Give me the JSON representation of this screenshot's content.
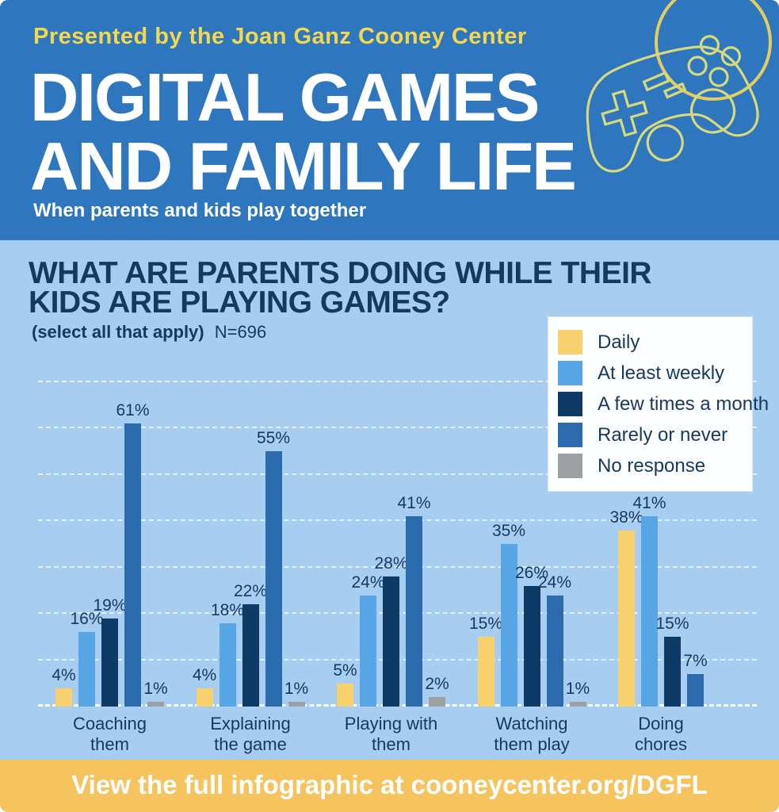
{
  "header": {
    "presented_by": "Presented by the Joan Ganz Cooney Center",
    "title_line1": "DIGITAL GAMES",
    "title_line2": "AND FAMILY LIFE",
    "subtitle": "When parents and kids play together",
    "icon": "game-controller-icon",
    "colors": {
      "background": "#2e77bf",
      "presented_by_text": "#f3d84e",
      "title_text": "#ffffff",
      "controller_outline": "#d8d97c",
      "arc_outline": "#e4cd60"
    }
  },
  "main": {
    "question_line1": "WHAT ARE PARENTS DOING WHILE THEIR",
    "question_line2": "KIDS ARE PLAYING GAMES?",
    "note_bold": "(select all that apply)",
    "note_sample": "N=696",
    "background": "#a7cdf0",
    "text_color": "#16395e"
  },
  "chart_data": {
    "type": "bar",
    "title": "What are parents doing while their kids are playing games?",
    "sample_note": "(select all that apply) N=696",
    "categories": [
      "Coaching them",
      "Explaining the game",
      "Playing with them",
      "Watching them play",
      "Doing chores"
    ],
    "series": [
      {
        "name": "Daily",
        "color": "#f8d06e",
        "values": [
          4,
          4,
          5,
          15,
          38
        ]
      },
      {
        "name": "At least weekly",
        "color": "#58a5e6",
        "values": [
          16,
          18,
          24,
          35,
          41
        ]
      },
      {
        "name": "A few times a month",
        "color": "#0e3a66",
        "values": [
          19,
          22,
          28,
          26,
          15
        ]
      },
      {
        "name": "Rarely or never",
        "color": "#2b6bae",
        "values": [
          61,
          55,
          41,
          24,
          7
        ]
      },
      {
        "name": "No response",
        "color": "#9da0a2",
        "values": [
          1,
          1,
          2,
          1,
          null
        ]
      }
    ],
    "value_suffix": "%",
    "ylim": [
      0,
      70
    ],
    "gridline_interval": 10,
    "grid_style": "dashed-white",
    "legend_position": "top-right"
  },
  "footer": {
    "text": "View the full infographic at cooneycenter.org/DGFL",
    "background": "#f6c45f"
  }
}
